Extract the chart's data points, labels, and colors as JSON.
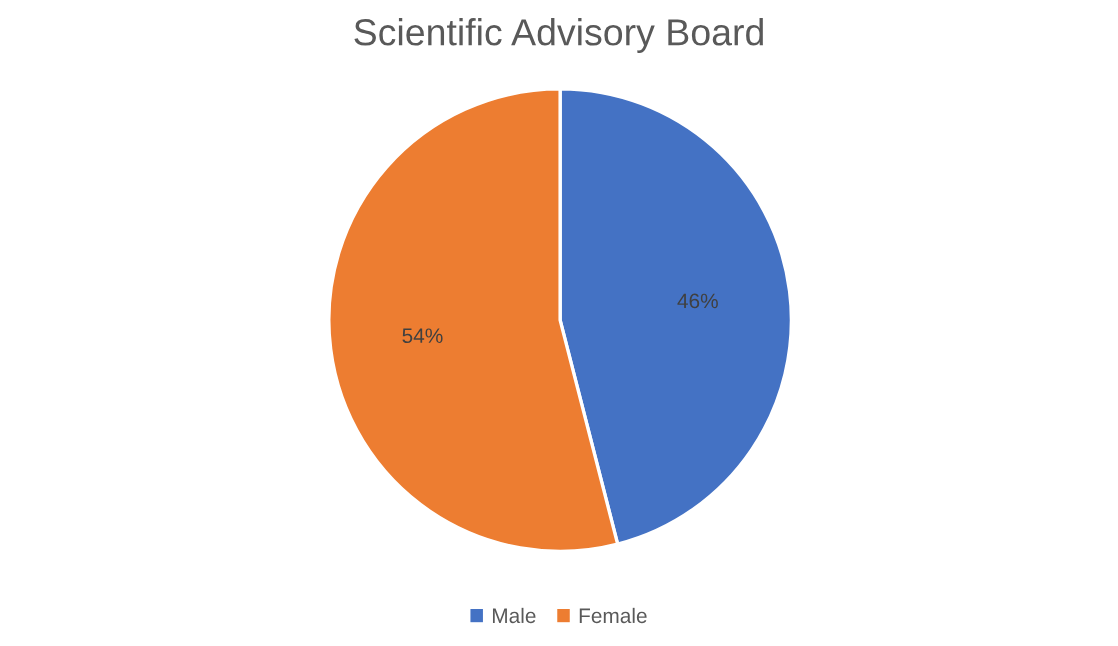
{
  "chart_data": {
    "type": "pie",
    "title": "Scientific Advisory Board",
    "categories": [
      "Male",
      "Female"
    ],
    "values": [
      46,
      54
    ],
    "value_labels": [
      "46%",
      "54%"
    ],
    "colors": [
      "#4472c4",
      "#ed7d31"
    ],
    "legend": "bottom"
  }
}
